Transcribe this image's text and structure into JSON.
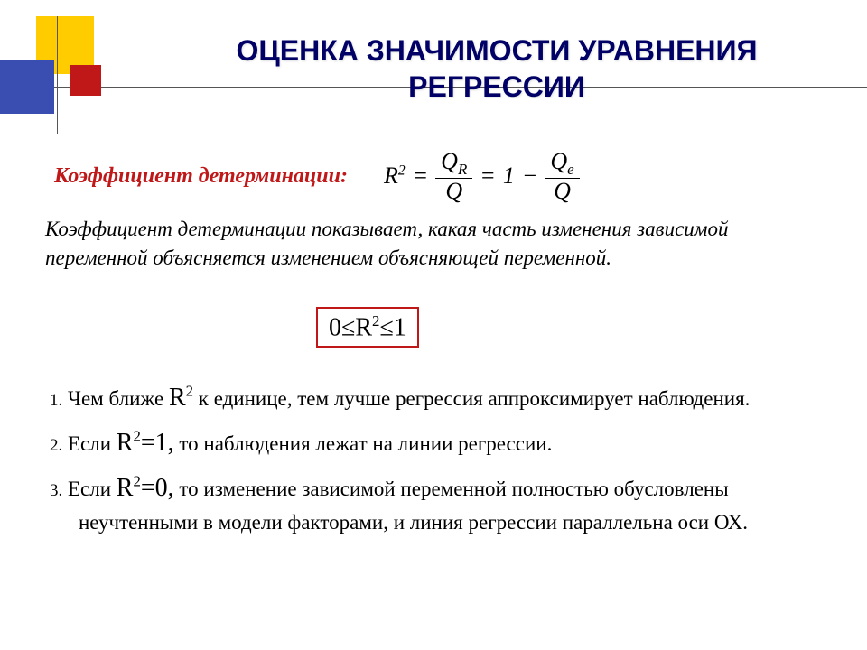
{
  "title": "ОЦЕНКА ЗНАЧИМОСТИ УРАВНЕНИЯ РЕГРЕССИИ",
  "subtitle": "Коэффициент детерминации:",
  "formula": {
    "lhs": "R",
    "num1_top": "Q",
    "num1_sub": "R",
    "den1": "Q",
    "mid": "1",
    "num2_top": "Q",
    "num2_sub": "e",
    "den2": "Q"
  },
  "explain": "Коэффициент детерминации показывает, какая часть изменения зависимой переменной объясняется изменением объясняющей переменной.",
  "boxed": "0≤R²≤1",
  "items": [
    {
      "num": "1.",
      "pre": "Чем ближе ",
      "mid": " к единице, тем лучше регрессия аппроксимирует наблюдения."
    },
    {
      "num": "2.",
      "pre": "Если ",
      "val": "=1,",
      "mid": " то наблюдения лежат на линии регрессии."
    },
    {
      "num": "3.",
      "pre": "Если ",
      "val": "=0,",
      "mid": " то изменение зависимой переменной полностью обусловлены неучтенными в модели факторами, и линия регрессии параллельна оси ОХ."
    }
  ],
  "colors": {
    "title": "#000066",
    "accent": "#c01818",
    "yellow": "#ffcc00",
    "blue": "#3a4db0"
  }
}
